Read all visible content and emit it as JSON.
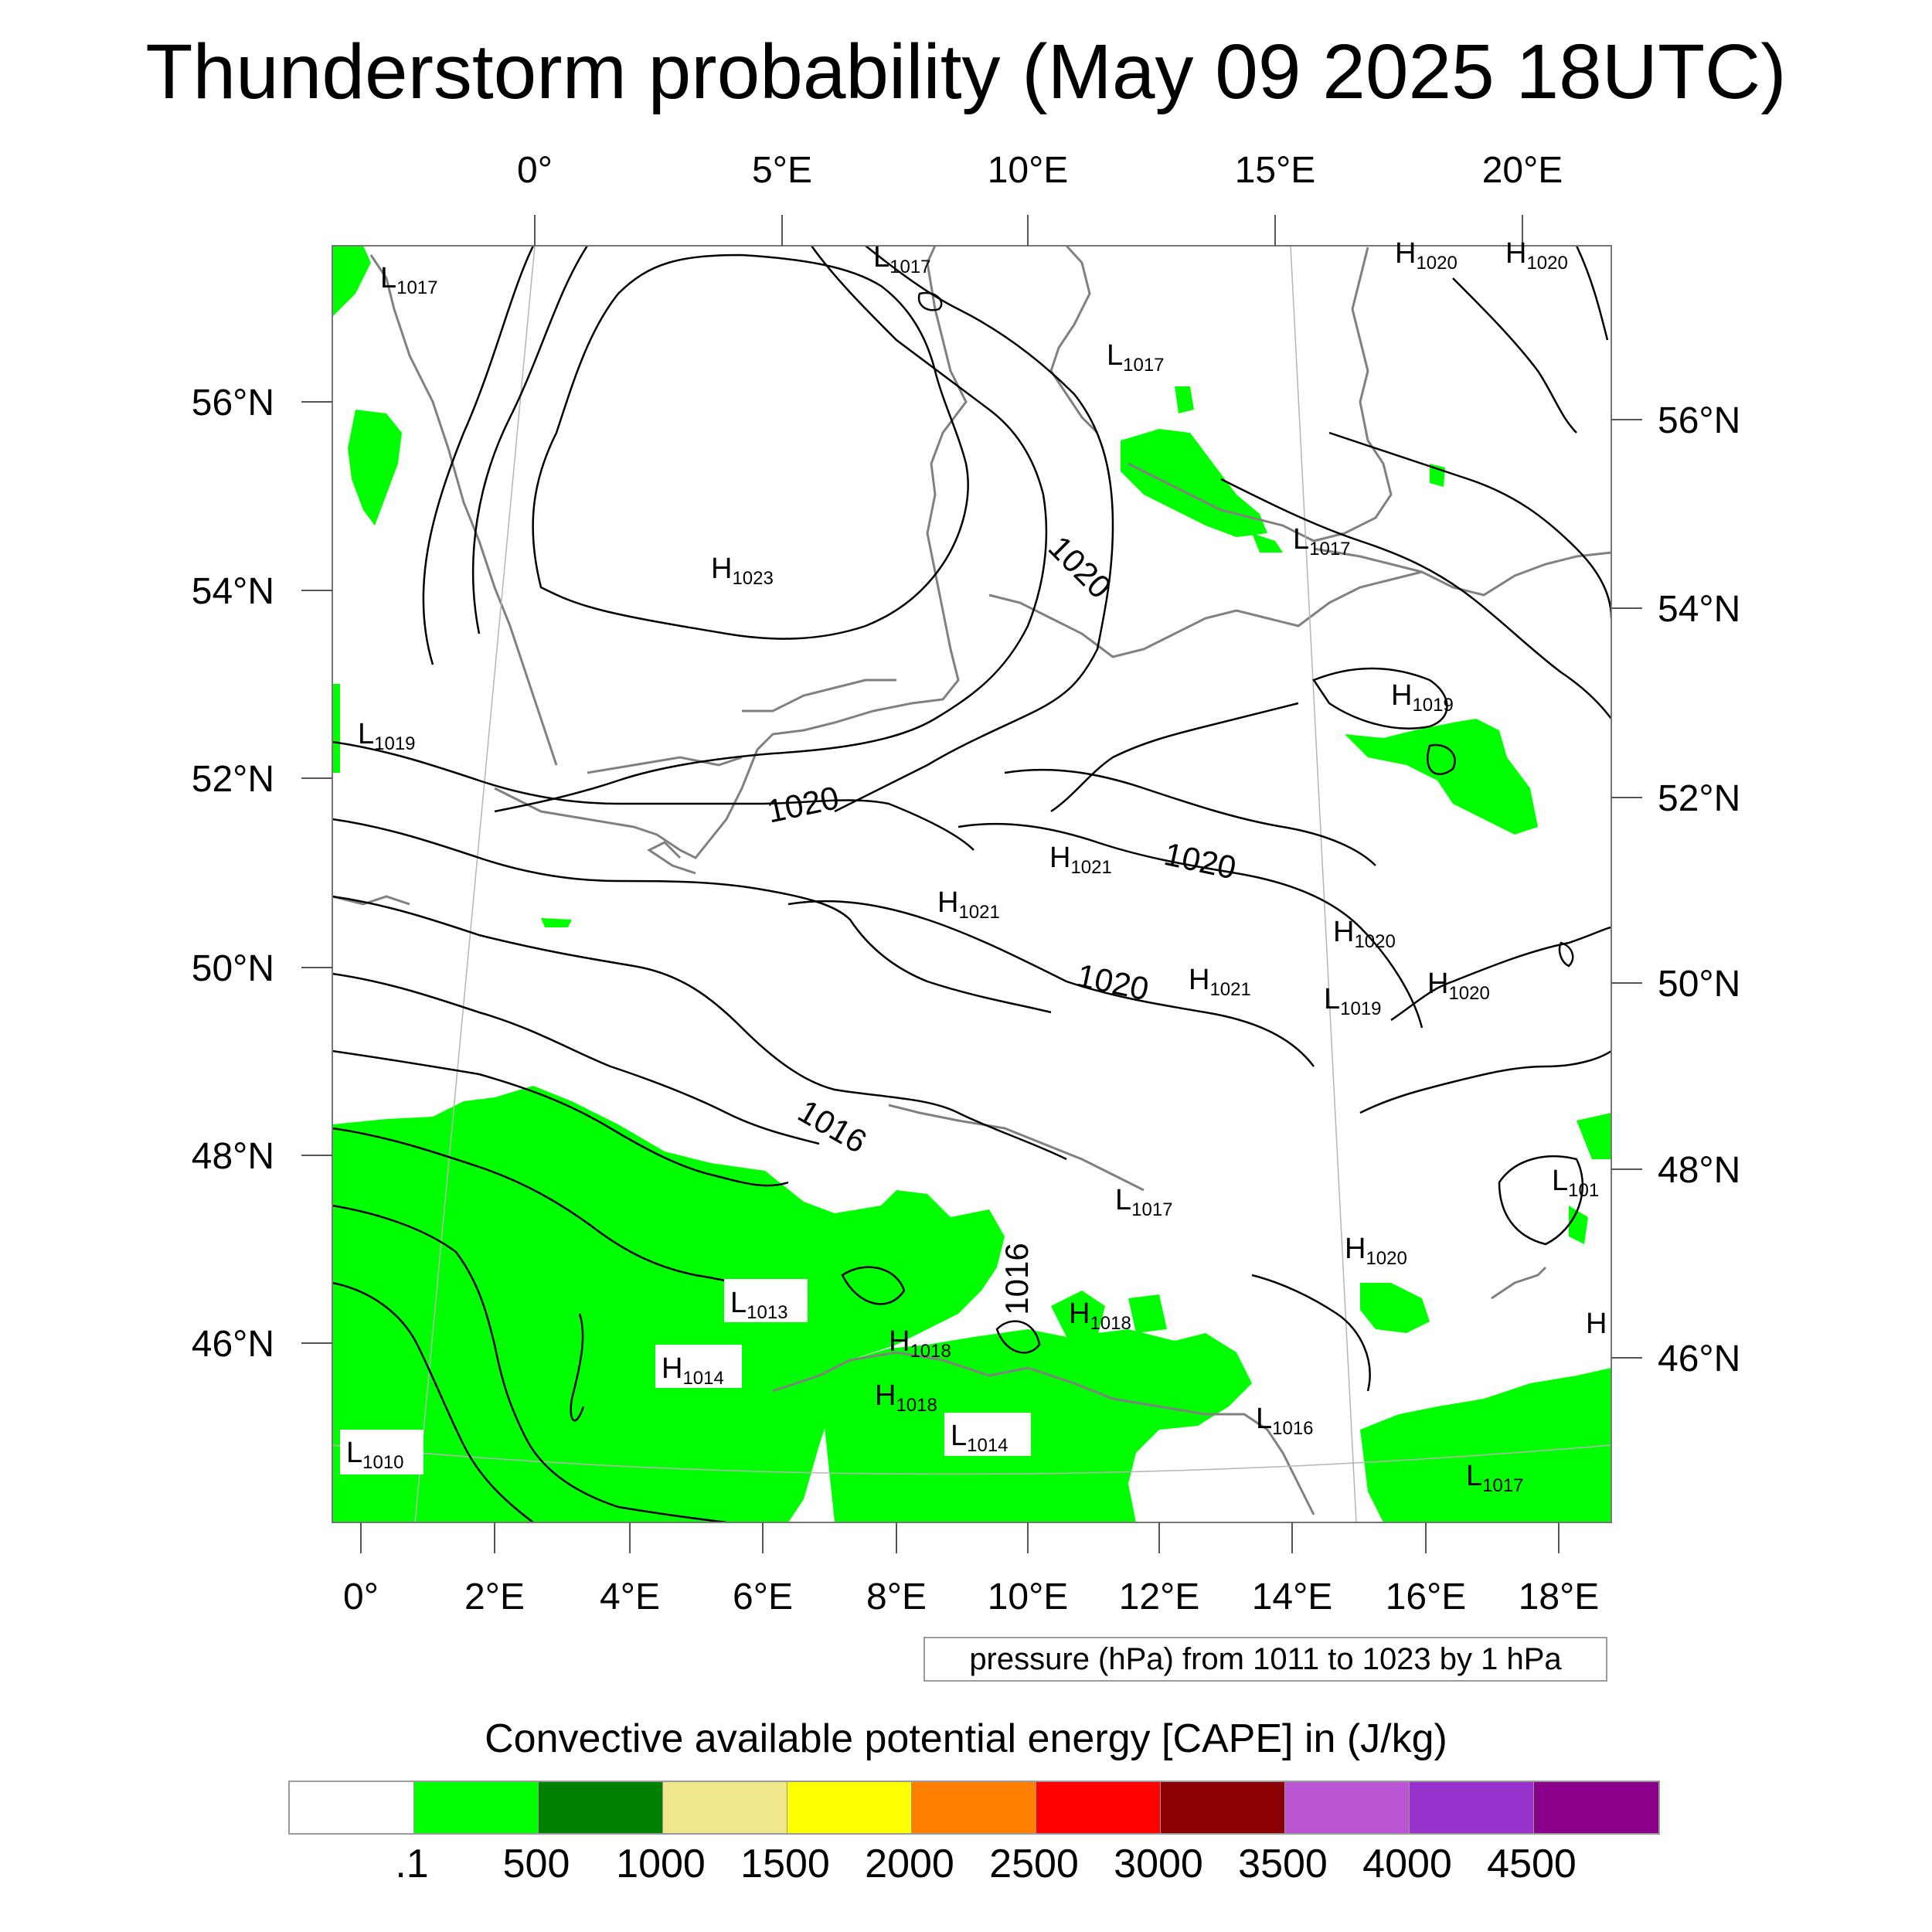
{
  "title": "Thunderstorm probability (May 09 2025 18UTC)",
  "axes": {
    "top_lon_labels": [
      "0°",
      "5°E",
      "10°E",
      "15°E",
      "20°E"
    ],
    "bottom_lon_labels": [
      "0°",
      "2°E",
      "4°E",
      "6°E",
      "8°E",
      "10°E",
      "12°E",
      "14°E",
      "16°E",
      "18°E"
    ],
    "left_lat_labels": [
      "56°N",
      "54°N",
      "52°N",
      "50°N",
      "48°N",
      "46°N"
    ],
    "right_lat_labels": [
      "56°N",
      "54°N",
      "52°N",
      "50°N",
      "48°N",
      "46°N"
    ]
  },
  "pressure_centers": [
    {
      "type": "L",
      "value": "1017"
    },
    {
      "type": "L",
      "value": "1017"
    },
    {
      "type": "H",
      "value": "1020"
    },
    {
      "type": "H",
      "value": "1020"
    },
    {
      "type": "L",
      "value": "1017"
    },
    {
      "type": "H",
      "value": "1023"
    },
    {
      "type": "L",
      "value": "1017"
    },
    {
      "type": "H",
      "value": "1019"
    },
    {
      "type": "L",
      "value": "1019"
    },
    {
      "type": "H",
      "value": "1021"
    },
    {
      "type": "H",
      "value": "1021"
    },
    {
      "type": "H",
      "value": "1020"
    },
    {
      "type": "H",
      "value": "1021"
    },
    {
      "type": "L",
      "value": "1019"
    },
    {
      "type": "H",
      "value": "1020"
    },
    {
      "type": "L",
      "value": "1017"
    },
    {
      "type": "H",
      "value": "1020"
    },
    {
      "type": "L",
      "value": "101"
    },
    {
      "type": "L",
      "value": "1013"
    },
    {
      "type": "H",
      "value": "1018"
    },
    {
      "type": "H",
      "value": "1018"
    },
    {
      "type": "H",
      "value": "1014"
    },
    {
      "type": "H",
      "value": "1018"
    },
    {
      "type": "L",
      "value": "1014"
    },
    {
      "type": "L",
      "value": "1010"
    },
    {
      "type": "L",
      "value": "1016"
    },
    {
      "type": "L",
      "value": "1017"
    },
    {
      "type": "H",
      "value": ""
    }
  ],
  "isobar_labels": [
    "1020",
    "1020",
    "1020",
    "1020",
    "1016",
    "1016"
  ],
  "info_box": "pressure (hPa) from 1011 to 1023 by 1 hPa",
  "colorbar": {
    "title": "Convective available potential energy [CAPE] in (J/kg)",
    "colors": [
      "#ffffff",
      "#00ff00",
      "#008000",
      "#f0e68c",
      "#ffff00",
      "#ff8000",
      "#ff0000",
      "#8b0000",
      "#ba55d3",
      "#9932cc",
      "#8b008b"
    ],
    "tick_labels": [
      ".1",
      "500",
      "1000",
      "1500",
      "2000",
      "2500",
      "3000",
      "3500",
      "4000",
      "4500"
    ]
  }
}
